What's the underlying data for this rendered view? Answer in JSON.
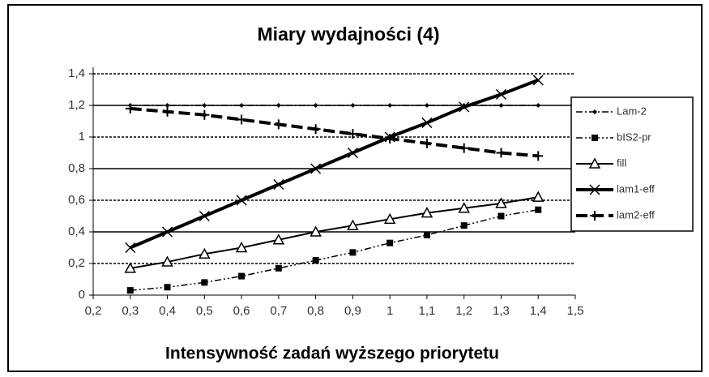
{
  "chart_data": {
    "type": "line",
    "title": "Miary wydajności (4)",
    "x_label": "Intensywność zadań wyższego priorytetu",
    "x": [
      0.3,
      0.4,
      0.5,
      0.6,
      0.7,
      0.8,
      0.9,
      1.0,
      1.1,
      1.2,
      1.3,
      1.4
    ],
    "series": [
      {
        "name": "Lam-2",
        "color": "#000000",
        "line_style": "dashdot",
        "marker": "diamond",
        "values": [
          1.2,
          1.2,
          1.2,
          1.2,
          1.2,
          1.2,
          1.2,
          1.2,
          1.2,
          1.2,
          1.2,
          1.2
        ]
      },
      {
        "name": "bIS2-pr",
        "color": "#000000",
        "line_style": "dashdotdot",
        "marker": "square",
        "values": [
          0.03,
          0.05,
          0.08,
          0.12,
          0.17,
          0.22,
          0.27,
          0.33,
          0.38,
          0.44,
          0.5,
          0.54
        ]
      },
      {
        "name": "fill",
        "color": "#000000",
        "line_style": "solid",
        "marker": "triangle",
        "values": [
          0.17,
          0.21,
          0.26,
          0.3,
          0.35,
          0.4,
          0.44,
          0.48,
          0.52,
          0.55,
          0.58,
          0.62
        ]
      },
      {
        "name": "lam1-eff",
        "color": "#000000",
        "line_style": "thick",
        "marker": "x",
        "values": [
          0.3,
          0.4,
          0.5,
          0.6,
          0.7,
          0.8,
          0.9,
          1.0,
          1.09,
          1.19,
          1.27,
          1.36
        ]
      },
      {
        "name": "lam2-eff",
        "color": "#000000",
        "line_style": "thickdash",
        "marker": "plus",
        "values": [
          1.18,
          1.16,
          1.14,
          1.11,
          1.08,
          1.05,
          1.02,
          0.99,
          0.96,
          0.93,
          0.9,
          0.88
        ]
      }
    ],
    "xlim": [
      0.2,
      1.5
    ],
    "xticks": [
      {
        "value": 0.2,
        "label": "0,2"
      },
      {
        "value": 0.3,
        "label": "0,3"
      },
      {
        "value": 0.4,
        "label": "0,4"
      },
      {
        "value": 0.5,
        "label": "0,5"
      },
      {
        "value": 0.6,
        "label": "0,6"
      },
      {
        "value": 0.7,
        "label": "0,7"
      },
      {
        "value": 0.8,
        "label": "0,8"
      },
      {
        "value": 0.9,
        "label": "0,9"
      },
      1,
      {
        "value": 1.1,
        "label": "1,1"
      },
      {
        "value": 1.2,
        "label": "1,2"
      },
      {
        "value": 1.3,
        "label": "1,3"
      },
      {
        "value": 1.4,
        "label": "1,4"
      },
      {
        "value": 1.5,
        "label": "1,5"
      }
    ],
    "ylim": [
      0,
      1.4
    ],
    "yticks": [
      0,
      {
        "value": 0.2,
        "label": "0,2"
      },
      {
        "value": 0.4,
        "label": "0,4"
      },
      {
        "value": 0.6,
        "label": "0,6"
      },
      {
        "value": 0.8,
        "label": "0,8"
      },
      1,
      {
        "value": 1.2,
        "label": "1,2"
      },
      {
        "value": 1.4,
        "label": "1,4"
      }
    ],
    "grid": true,
    "legend": "right"
  }
}
